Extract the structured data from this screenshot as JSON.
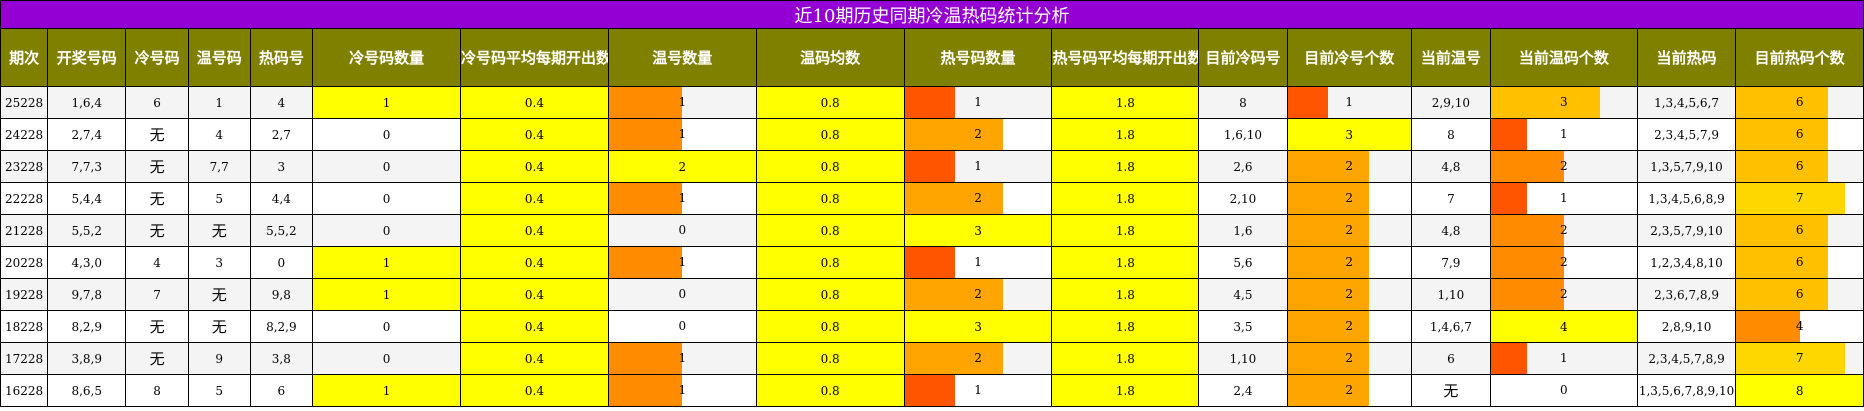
{
  "title": "近10期历史同期冷温热码统计分析",
  "headers": [
    "期次",
    "开奖号码",
    "冷号码",
    "温号码",
    "热码号",
    "冷号码数量",
    "冷号码平均每期开出数量",
    "温号数量",
    "温码均数",
    "热号码数量",
    "热号码平均每期开出数量",
    "目前冷码号",
    "目前冷号个数",
    "当前温号",
    "当前温码个数",
    "当前热码",
    "目前热码个数"
  ],
  "colors": {
    "title_bg": "#9400D3",
    "header_bg": "#808000",
    "yellow": "#FFFF00",
    "bar_orange": "#FFA500",
    "bar_red_orange": "#FF5500",
    "bar_amber": "#FFC000",
    "bar_gold": "#FFD700",
    "bar_dark_orange": "#FF8C00"
  },
  "rows": [
    {
      "issue": "25228",
      "draw": "1,6,4",
      "cold": "6",
      "warm": "1",
      "hot": "4",
      "cold_count": "1",
      "cold_avg": "0.4",
      "warm_count": "1",
      "warm_avg": "0.8",
      "hot_count": "1",
      "hot_avg": "1.8",
      "cur_cold": "8",
      "cur_cold_count": "1",
      "cur_warm": "2,9,10",
      "cur_warm_count": "3",
      "cur_hot": "1,3,4,5,6,7",
      "cur_hot_count": "6"
    },
    {
      "issue": "24228",
      "draw": "2,7,4",
      "cold": "无",
      "warm": "4",
      "hot": "2,7",
      "cold_count": "0",
      "cold_avg": "0.4",
      "warm_count": "1",
      "warm_avg": "0.8",
      "hot_count": "2",
      "hot_avg": "1.8",
      "cur_cold": "1,6,10",
      "cur_cold_count": "3",
      "cur_warm": "8",
      "cur_warm_count": "1",
      "cur_hot": "2,3,4,5,7,9",
      "cur_hot_count": "6"
    },
    {
      "issue": "23228",
      "draw": "7,7,3",
      "cold": "无",
      "warm": "7,7",
      "hot": "3",
      "cold_count": "0",
      "cold_avg": "0.4",
      "warm_count": "2",
      "warm_avg": "0.8",
      "hot_count": "1",
      "hot_avg": "1.8",
      "cur_cold": "2,6",
      "cur_cold_count": "2",
      "cur_warm": "4,8",
      "cur_warm_count": "2",
      "cur_hot": "1,3,5,7,9,10",
      "cur_hot_count": "6"
    },
    {
      "issue": "22228",
      "draw": "5,4,4",
      "cold": "无",
      "warm": "5",
      "hot": "4,4",
      "cold_count": "0",
      "cold_avg": "0.4",
      "warm_count": "1",
      "warm_avg": "0.8",
      "hot_count": "2",
      "hot_avg": "1.8",
      "cur_cold": "2,10",
      "cur_cold_count": "2",
      "cur_warm": "7",
      "cur_warm_count": "1",
      "cur_hot": "1,3,4,5,6,8,9",
      "cur_hot_count": "7"
    },
    {
      "issue": "21228",
      "draw": "5,5,2",
      "cold": "无",
      "warm": "无",
      "hot": "5,5,2",
      "cold_count": "0",
      "cold_avg": "0.4",
      "warm_count": "0",
      "warm_avg": "0.8",
      "hot_count": "3",
      "hot_avg": "1.8",
      "cur_cold": "1,6",
      "cur_cold_count": "2",
      "cur_warm": "4,8",
      "cur_warm_count": "2",
      "cur_hot": "2,3,5,7,9,10",
      "cur_hot_count": "6"
    },
    {
      "issue": "20228",
      "draw": "4,3,0",
      "cold": "4",
      "warm": "3",
      "hot": "0",
      "cold_count": "1",
      "cold_avg": "0.4",
      "warm_count": "1",
      "warm_avg": "0.8",
      "hot_count": "1",
      "hot_avg": "1.8",
      "cur_cold": "5,6",
      "cur_cold_count": "2",
      "cur_warm": "7,9",
      "cur_warm_count": "2",
      "cur_hot": "1,2,3,4,8,10",
      "cur_hot_count": "6"
    },
    {
      "issue": "19228",
      "draw": "9,7,8",
      "cold": "7",
      "warm": "无",
      "hot": "9,8",
      "cold_count": "1",
      "cold_avg": "0.4",
      "warm_count": "0",
      "warm_avg": "0.8",
      "hot_count": "2",
      "hot_avg": "1.8",
      "cur_cold": "4,5",
      "cur_cold_count": "2",
      "cur_warm": "1,10",
      "cur_warm_count": "2",
      "cur_hot": "2,3,6,7,8,9",
      "cur_hot_count": "6"
    },
    {
      "issue": "18228",
      "draw": "8,2,9",
      "cold": "无",
      "warm": "无",
      "hot": "8,2,9",
      "cold_count": "0",
      "cold_avg": "0.4",
      "warm_count": "0",
      "warm_avg": "0.8",
      "hot_count": "3",
      "hot_avg": "1.8",
      "cur_cold": "3,5",
      "cur_cold_count": "2",
      "cur_warm": "1,4,6,7",
      "cur_warm_count": "4",
      "cur_hot": "2,8,9,10",
      "cur_hot_count": "4"
    },
    {
      "issue": "17228",
      "draw": "3,8,9",
      "cold": "无",
      "warm": "9",
      "hot": "3,8",
      "cold_count": "0",
      "cold_avg": "0.4",
      "warm_count": "1",
      "warm_avg": "0.8",
      "hot_count": "2",
      "hot_avg": "1.8",
      "cur_cold": "1,10",
      "cur_cold_count": "2",
      "cur_warm": "6",
      "cur_warm_count": "1",
      "cur_hot": "2,3,4,5,7,8,9",
      "cur_hot_count": "7"
    },
    {
      "issue": "16228",
      "draw": "8,6,5",
      "cold": "8",
      "warm": "5",
      "hot": "6",
      "cold_count": "1",
      "cold_avg": "0.4",
      "warm_count": "1",
      "warm_avg": "0.8",
      "hot_count": "1",
      "hot_avg": "1.8",
      "cur_cold": "2,4",
      "cur_cold_count": "2",
      "cur_warm": "无",
      "cur_warm_count": "0",
      "cur_hot": "1,3,5,6,7,8,9,10",
      "cur_hot_count": "8"
    }
  ]
}
